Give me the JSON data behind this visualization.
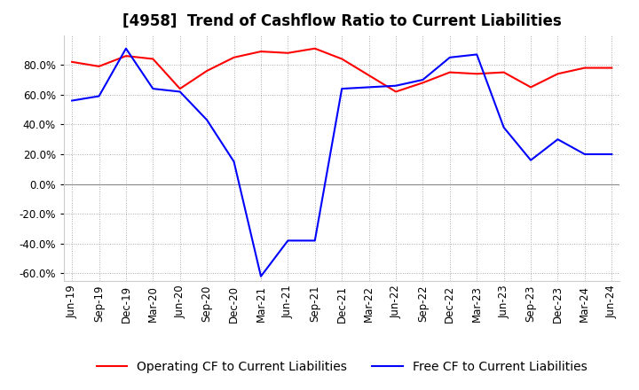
{
  "title": "[4958]  Trend of Cashflow Ratio to Current Liabilities",
  "x_labels": [
    "Jun-19",
    "Sep-19",
    "Dec-19",
    "Mar-20",
    "Jun-20",
    "Sep-20",
    "Dec-20",
    "Mar-21",
    "Jun-21",
    "Sep-21",
    "Dec-21",
    "Mar-22",
    "Jun-22",
    "Sep-22",
    "Dec-22",
    "Mar-23",
    "Jun-23",
    "Sep-23",
    "Dec-23",
    "Mar-24",
    "Jun-24"
  ],
  "operating_cf": [
    82.0,
    79.0,
    86.0,
    84.0,
    64.0,
    76.0,
    85.0,
    89.0,
    88.0,
    91.0,
    84.0,
    73.0,
    62.0,
    68.0,
    75.0,
    74.0,
    75.0,
    65.0,
    74.0,
    78.0,
    78.0
  ],
  "free_cf": [
    56.0,
    59.0,
    91.0,
    64.0,
    62.0,
    43.0,
    15.0,
    -62.0,
    -38.0,
    -38.0,
    64.0,
    65.0,
    66.0,
    70.0,
    85.0,
    87.0,
    38.0,
    16.0,
    30.0,
    20.0,
    20.0
  ],
  "ylim": [
    -65,
    100
  ],
  "yticks": [
    -60,
    -40,
    -20,
    0,
    20,
    40,
    60,
    80
  ],
  "operating_color": "#ff0000",
  "free_color": "#0000ff",
  "grid_color": "#aaaaaa",
  "background_color": "#ffffff",
  "title_fontsize": 12,
  "legend_fontsize": 10,
  "tick_fontsize": 8.5
}
